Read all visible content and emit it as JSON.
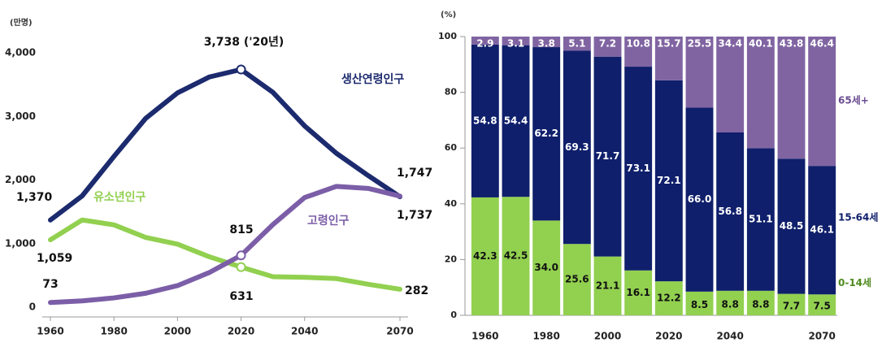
{
  "chart_data": [
    {
      "type": "line",
      "y_unit_label": "(만명)",
      "x": [
        1960,
        1970,
        1980,
        1990,
        2000,
        2010,
        2020,
        2030,
        2040,
        2050,
        2060,
        2070
      ],
      "xlim": [
        1960,
        2070
      ],
      "xticks": [
        1960,
        1980,
        2000,
        2020,
        2040,
        2070
      ],
      "ylim": [
        0,
        4000
      ],
      "yticks": [
        0,
        {
          "value": 1000,
          "label": "1,000"
        },
        {
          "value": 2000,
          "label": "2,000"
        },
        {
          "value": 3000,
          "label": "3,000"
        },
        {
          "value": 4000,
          "label": "4,000"
        }
      ],
      "series": [
        {
          "name": "생산연령인구",
          "color": "#1c2a6e",
          "values": [
            1370,
            1750,
            2370,
            2970,
            3370,
            3620,
            3738,
            3380,
            2850,
            2420,
            2070,
            1737
          ]
        },
        {
          "name": "유소년인구",
          "color": "#92d050",
          "values": [
            1059,
            1371,
            1295,
            1097,
            991,
            793,
            631,
            480,
            470,
            450,
            360,
            282
          ]
        },
        {
          "name": "고령인구",
          "color": "#7b5ea7",
          "values": [
            73,
            99,
            146,
            219,
            339,
            545,
            815,
            1298,
            1724,
            1900,
            1868,
            1747
          ]
        }
      ],
      "annotations": [
        "3,738 ('20년)",
        "1,370",
        "1,059",
        "73",
        "815",
        "631",
        "1,747",
        "1,737",
        "282"
      ]
    },
    {
      "type": "stacked_bar",
      "y_unit_label": "(%)",
      "categories": [
        "1960",
        null,
        "1980",
        null,
        "2000",
        null,
        "2020",
        null,
        "2040",
        null,
        null,
        "2070"
      ],
      "ylim": [
        0,
        100
      ],
      "yticks": [
        0,
        20,
        40,
        60,
        80,
        100
      ],
      "series": [
        {
          "name": "0-14세",
          "color": "#92d050",
          "values": [
            42.3,
            42.5,
            34.0,
            25.6,
            21.1,
            16.1,
            12.2,
            8.5,
            8.8,
            8.8,
            7.7,
            7.5
          ],
          "value_labels": [
            "42.3",
            "42.5",
            "34.0",
            "25.6",
            "21.1",
            "16.1",
            "12.2",
            "8.5",
            "8.8",
            "8.8",
            "7.7",
            "7.5"
          ]
        },
        {
          "name": "15-64세",
          "color": "#0f1f6b",
          "values": [
            54.8,
            54.4,
            62.2,
            69.3,
            71.7,
            73.1,
            72.1,
            66.0,
            56.8,
            51.1,
            48.5,
            46.1
          ],
          "value_labels": [
            "54.8",
            "54.4",
            "62.2",
            "69.3",
            "71.7",
            "73.1",
            "72.1",
            "66.0",
            "56.8",
            "51.1",
            "48.5",
            "46.1"
          ]
        },
        {
          "name": "65세+",
          "color": "#8064a2",
          "values": [
            2.9,
            3.1,
            3.8,
            5.1,
            7.2,
            10.8,
            15.7,
            25.5,
            34.4,
            40.1,
            43.8,
            46.4
          ],
          "value_labels": [
            "2.9",
            "3.1",
            "3.8",
            "5.1",
            "7.2",
            "10.8",
            "15.7",
            "25.5",
            "34.4",
            "40.1",
            "43.8",
            "46.4"
          ]
        }
      ]
    }
  ]
}
